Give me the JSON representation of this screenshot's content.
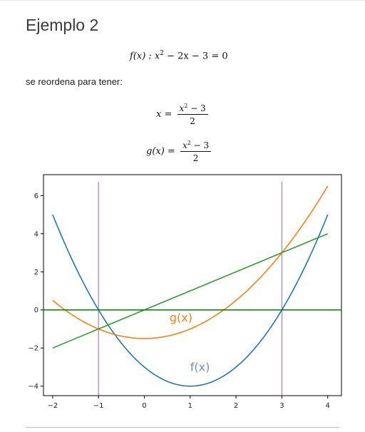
{
  "heading": "Ejemplo 2",
  "equation_f": {
    "lhs": "f(x) : x",
    "exp": "2",
    "rhs": " − 2x − 3 = 0"
  },
  "paragraph": "se reordena para tener:",
  "equation_x": {
    "lhs": "x =",
    "num_base": "x",
    "num_exp": "2",
    "num_rest": " − 3",
    "den": "2"
  },
  "equation_g": {
    "lhs": "g(x) =",
    "num_base": "x",
    "num_exp": "2",
    "num_rest": " − 3",
    "den": "2"
  },
  "chart_data": {
    "type": "line",
    "xlim": [
      -2.2,
      4.3
    ],
    "ylim": [
      -4.5,
      7.1
    ],
    "xticks": [
      -2,
      -1,
      0,
      1,
      2,
      3,
      4
    ],
    "yticks": [
      -4,
      -2,
      0,
      2,
      4,
      6
    ],
    "grid": false,
    "series": [
      {
        "color": "#1f77b4",
        "x": [
          -2,
          -1.5,
          -1,
          -0.5,
          0,
          0.5,
          1,
          1.5,
          2,
          2.5,
          3,
          3.5,
          4
        ],
        "y": [
          5,
          2.25,
          0,
          -1.75,
          -3,
          -3.75,
          -4,
          -3.75,
          -3,
          -1.75,
          0,
          2.25,
          5
        ]
      },
      {
        "color": "#ff7f0e",
        "x": [
          -2,
          -1.5,
          -1,
          -0.5,
          0,
          0.5,
          1,
          1.5,
          2,
          2.5,
          3,
          3.5,
          4
        ],
        "y": [
          0.5,
          -0.375,
          -1,
          -1.375,
          -1.5,
          -1.375,
          -1,
          -0.375,
          0.5,
          1.625,
          3,
          4.625,
          6.5
        ]
      },
      {
        "color": "#2ca02c",
        "x": [
          -2,
          4
        ],
        "y": [
          -2,
          4
        ]
      }
    ],
    "hlines": [
      {
        "y": 0,
        "color": "#008000"
      }
    ],
    "vlines": [
      {
        "x": -1,
        "color": "#9467bd"
      },
      {
        "x": 3,
        "color": "#9467bd"
      }
    ],
    "annotations": [
      {
        "text": "g(x)",
        "x": 0.55,
        "y": -0.6,
        "color": "#ff7f0e"
      },
      {
        "text": "f(x)",
        "x": 1.0,
        "y": -3.2,
        "color": "#6f8fb8"
      }
    ]
  }
}
